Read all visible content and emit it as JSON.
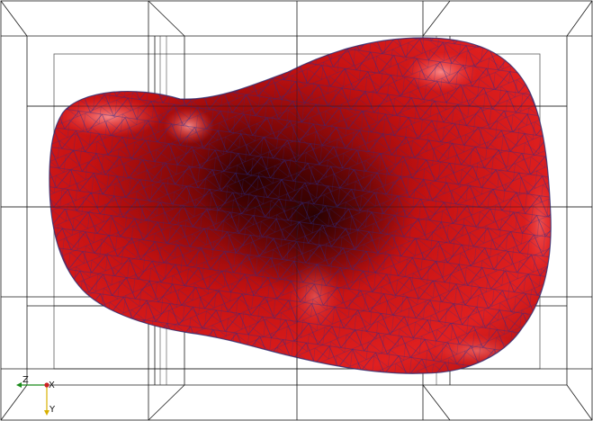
{
  "viewport": {
    "background": "#ffffff",
    "grid_color": "#1a1a1a",
    "mesh_fill": "#cf1414",
    "mesh_edge": "#2a2a8a"
  },
  "axes_triad": {
    "z_label": "Z",
    "x_label": "X",
    "y_label": "Y",
    "z_color": "#1a8a1a",
    "x_color": "#cc2222",
    "y_color": "#d8b000"
  }
}
